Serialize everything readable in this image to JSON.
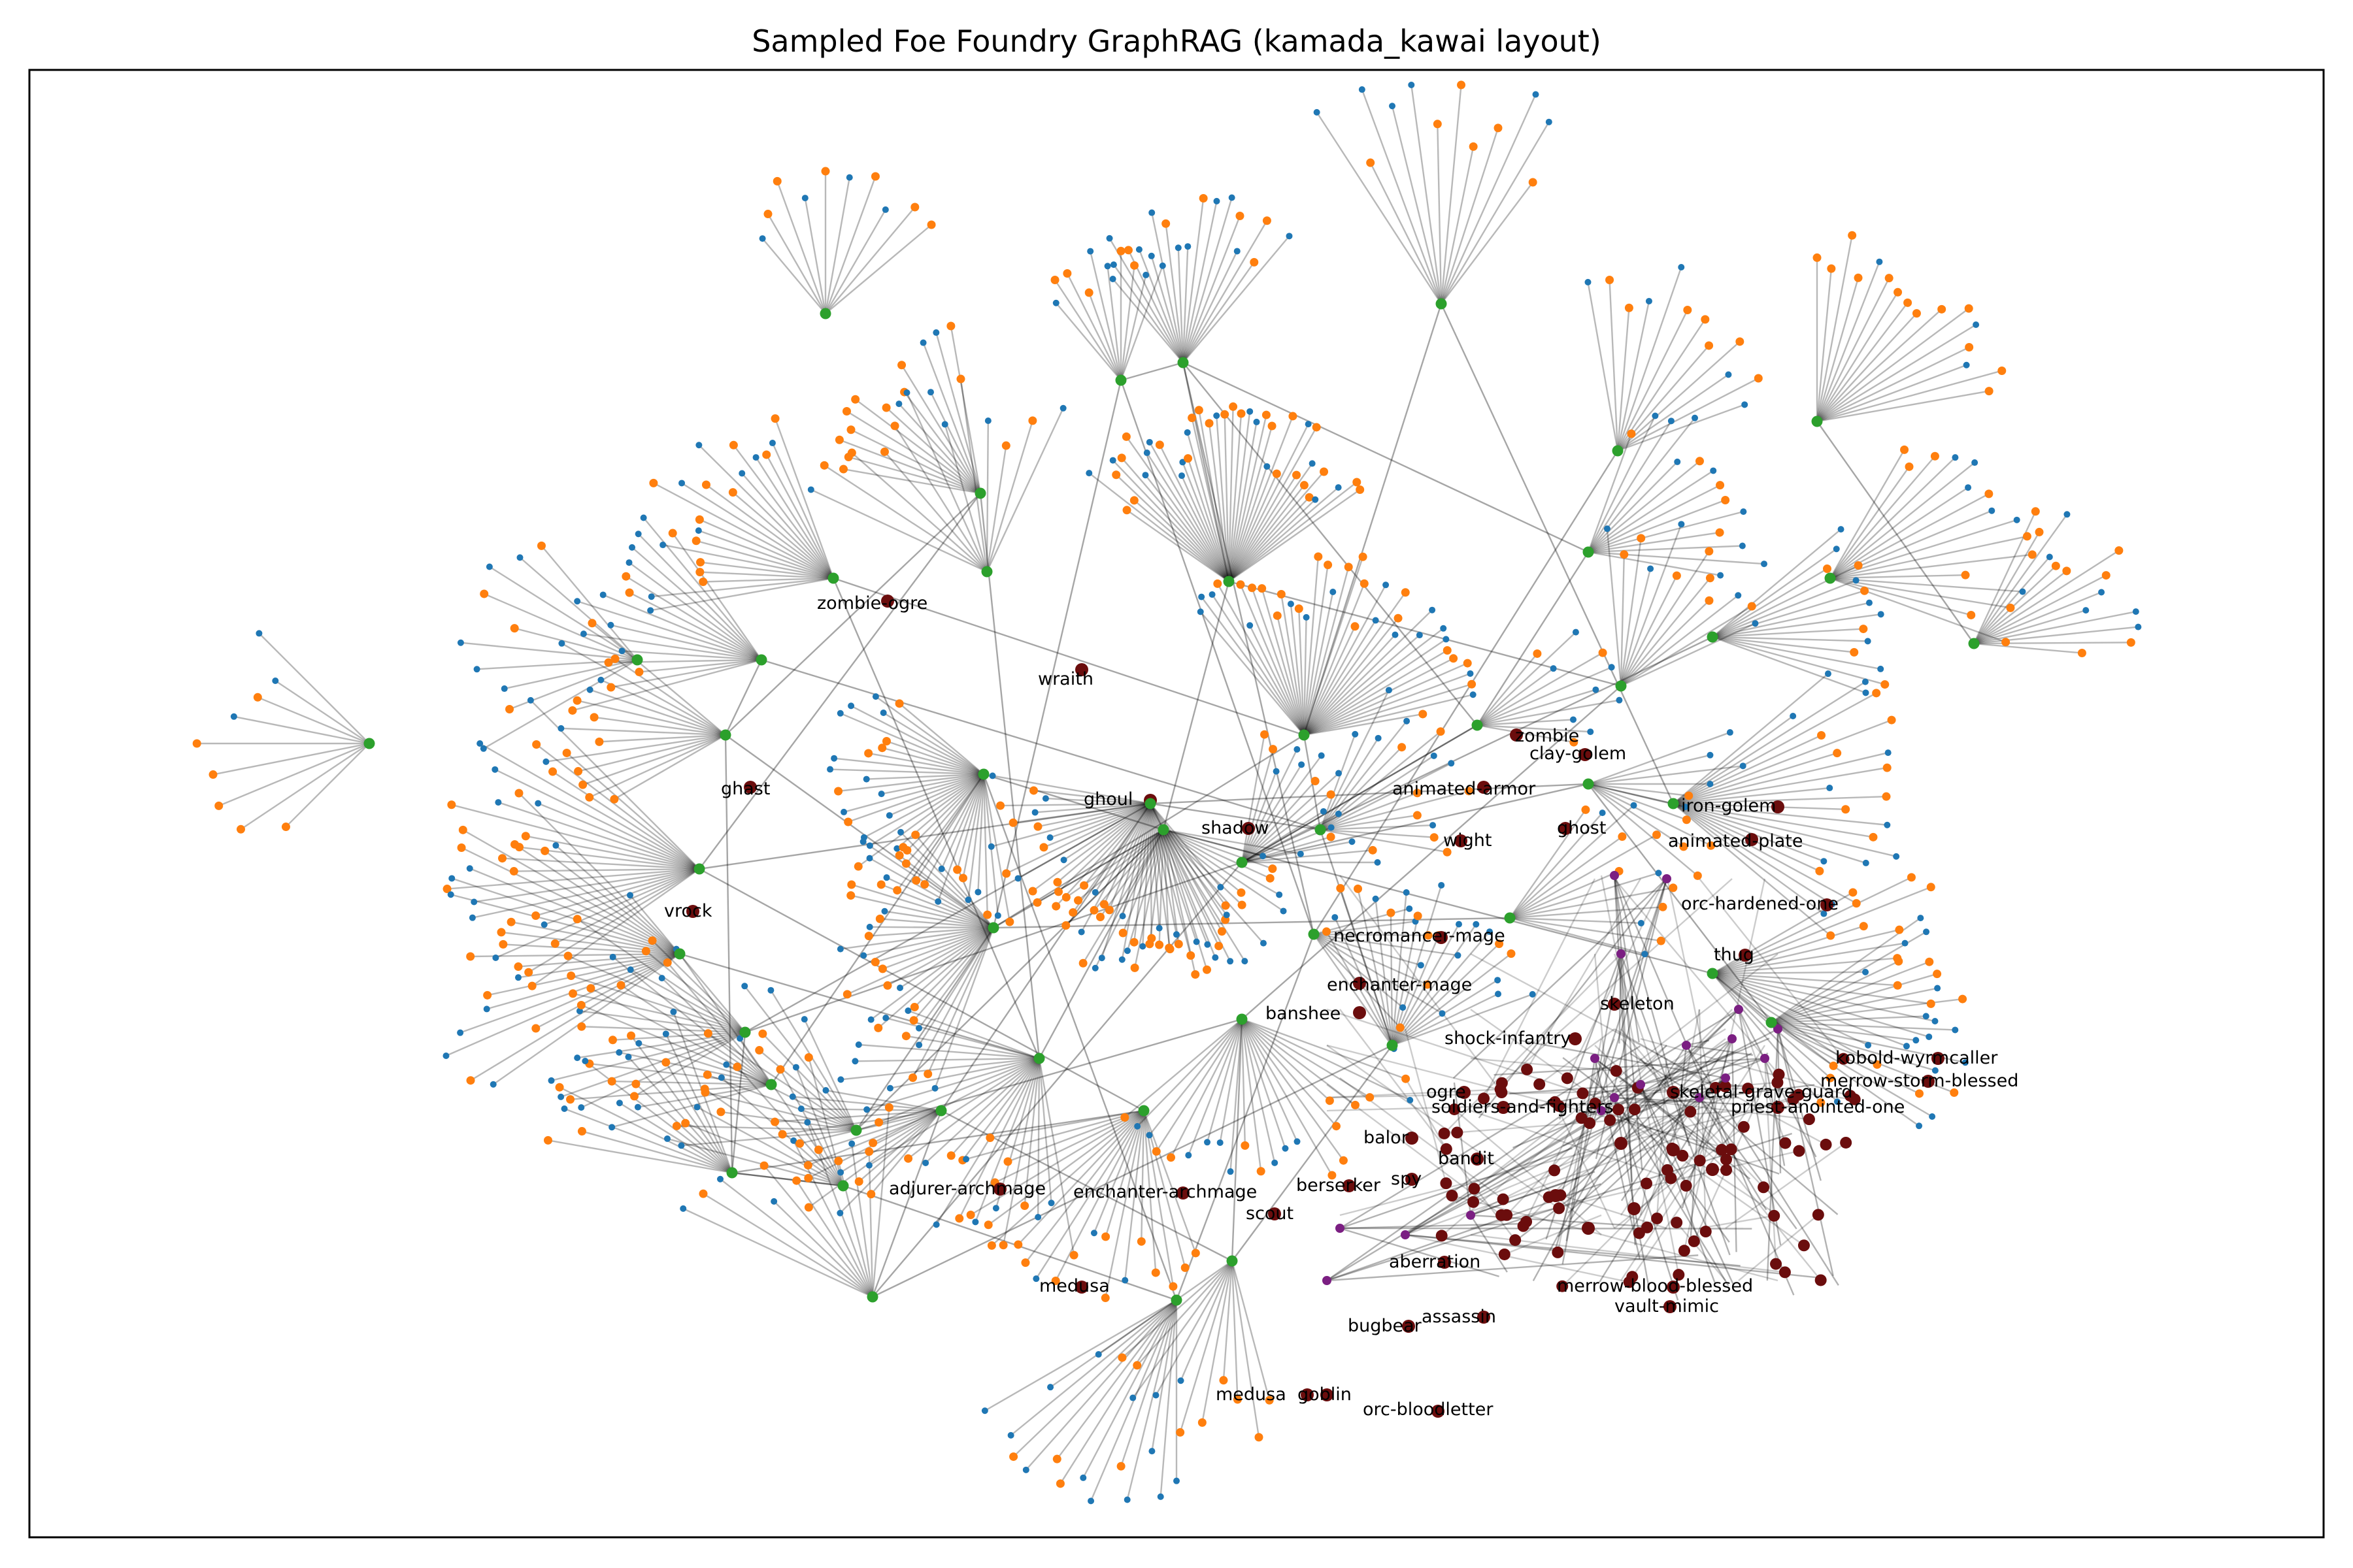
{
  "title": "Sampled Foe Foundry GraphRAG (kamada_kawai layout)",
  "colors": {
    "edge": "#000000",
    "frame": "#000000",
    "hub": "#2ca02c",
    "leaf_orange": "#ff7f0e",
    "leaf_blue": "#1f77b4",
    "monster": "#6b0d0d",
    "category": "#7b1f82"
  },
  "labels": [
    {
      "text": "zombie-ogre"
    },
    {
      "text": "wraith"
    },
    {
      "text": "zombie"
    },
    {
      "text": "clay-golem"
    },
    {
      "text": "ghast"
    },
    {
      "text": "animated-armor"
    },
    {
      "text": "ghoul"
    },
    {
      "text": "shadow"
    },
    {
      "text": "wight"
    },
    {
      "text": "ghost"
    },
    {
      "text": "iron-golem"
    },
    {
      "text": "animated-plate"
    },
    {
      "text": "vrock"
    },
    {
      "text": "orc-hardened-one"
    },
    {
      "text": "necromancer-mage"
    },
    {
      "text": "thug"
    },
    {
      "text": "enchanter-mage"
    },
    {
      "text": "banshee"
    },
    {
      "text": "skeleton"
    },
    {
      "text": "shock-infantry"
    },
    {
      "text": "kobold-wyrmcaller"
    },
    {
      "text": "merrow-storm-blessed"
    },
    {
      "text": "skeletal-grave-guard"
    },
    {
      "text": "ogre"
    },
    {
      "text": "soldiers-and-fighters"
    },
    {
      "text": "priest-anointed-one"
    },
    {
      "text": "balor"
    },
    {
      "text": "bandit"
    },
    {
      "text": "adjurer-archmage"
    },
    {
      "text": "enchanter-archmage"
    },
    {
      "text": "berserker"
    },
    {
      "text": "spy"
    },
    {
      "text": "scout"
    },
    {
      "text": "aberration"
    },
    {
      "text": "medusa"
    },
    {
      "text": "merrow-blood-blessed"
    },
    {
      "text": "vault-mimic"
    },
    {
      "text": "assassin"
    },
    {
      "text": "bugbear"
    },
    {
      "text": "medusa"
    },
    {
      "text": "goblin"
    },
    {
      "text": "orc-bloodletter"
    }
  ]
}
